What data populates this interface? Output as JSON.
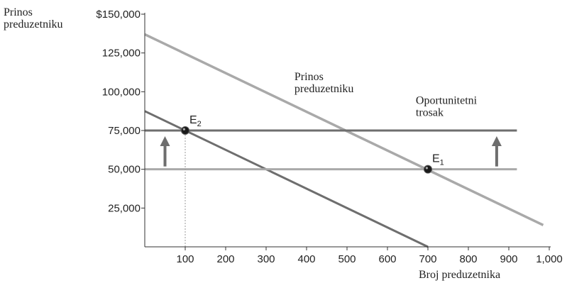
{
  "chart_data": {
    "type": "line",
    "title": "",
    "ylabel_line1": "Prinos",
    "ylabel_line2": "preduzetniku",
    "xlabel": "Broj preduzetnika",
    "xlim": [
      0,
      1000
    ],
    "ylim": [
      0,
      150000
    ],
    "x_ticks": [
      100,
      200,
      300,
      400,
      500,
      600,
      700,
      800,
      900,
      1000
    ],
    "x_tick_labels": [
      "100",
      "200",
      "300",
      "400",
      "500",
      "600",
      "700",
      "800",
      "900",
      "1,000"
    ],
    "y_ticks": [
      25000,
      50000,
      75000,
      100000,
      125000,
      150000
    ],
    "y_tick_labels": [
      "25,000",
      "50,000",
      "75,000",
      "100,000",
      "125,000",
      "$150,000"
    ],
    "grid": false,
    "series": [
      {
        "id": "return-high",
        "name": "Prinos preduzetniku",
        "x": [
          0,
          985
        ],
        "y": [
          137000,
          14000
        ],
        "color": "#a9a9a9",
        "width": 3.5
      },
      {
        "id": "return-low",
        "x": [
          0,
          700
        ],
        "y": [
          87500,
          0
        ],
        "color": "#6e6e6e",
        "width": 3
      },
      {
        "id": "opp-cost-high",
        "name": "Oportunitetni trosak",
        "x": [
          0,
          920
        ],
        "y": [
          75000,
          75000
        ],
        "color": "#6e6e6e",
        "width": 3
      },
      {
        "id": "opp-cost-low",
        "x": [
          0,
          920
        ],
        "y": [
          50000,
          50000
        ],
        "color": "#a9a9a9",
        "width": 3
      }
    ],
    "points": [
      {
        "label": "E",
        "sub": "2",
        "x": 100,
        "y": 75000
      },
      {
        "label": "E",
        "sub": "1",
        "x": 700,
        "y": 50000
      }
    ],
    "guides": [
      {
        "type": "vertical-dotted",
        "x": 100,
        "y_from": 0,
        "y_to": 75000
      }
    ],
    "arrows": [
      {
        "x": 50,
        "y_from": 50000,
        "y_to": 75000,
        "direction": "up"
      },
      {
        "x": 870,
        "y_from": 50000,
        "y_to": 75000,
        "direction": "up"
      }
    ],
    "annotations": [
      {
        "id": "return-label",
        "line1": "Prinos",
        "line2": "preduzetniku",
        "x": 370,
        "y": 103000
      },
      {
        "id": "opp-cost-label",
        "line1": "Oportunitetni",
        "line2": "trosak",
        "x": 670,
        "y": 87500
      }
    ]
  }
}
